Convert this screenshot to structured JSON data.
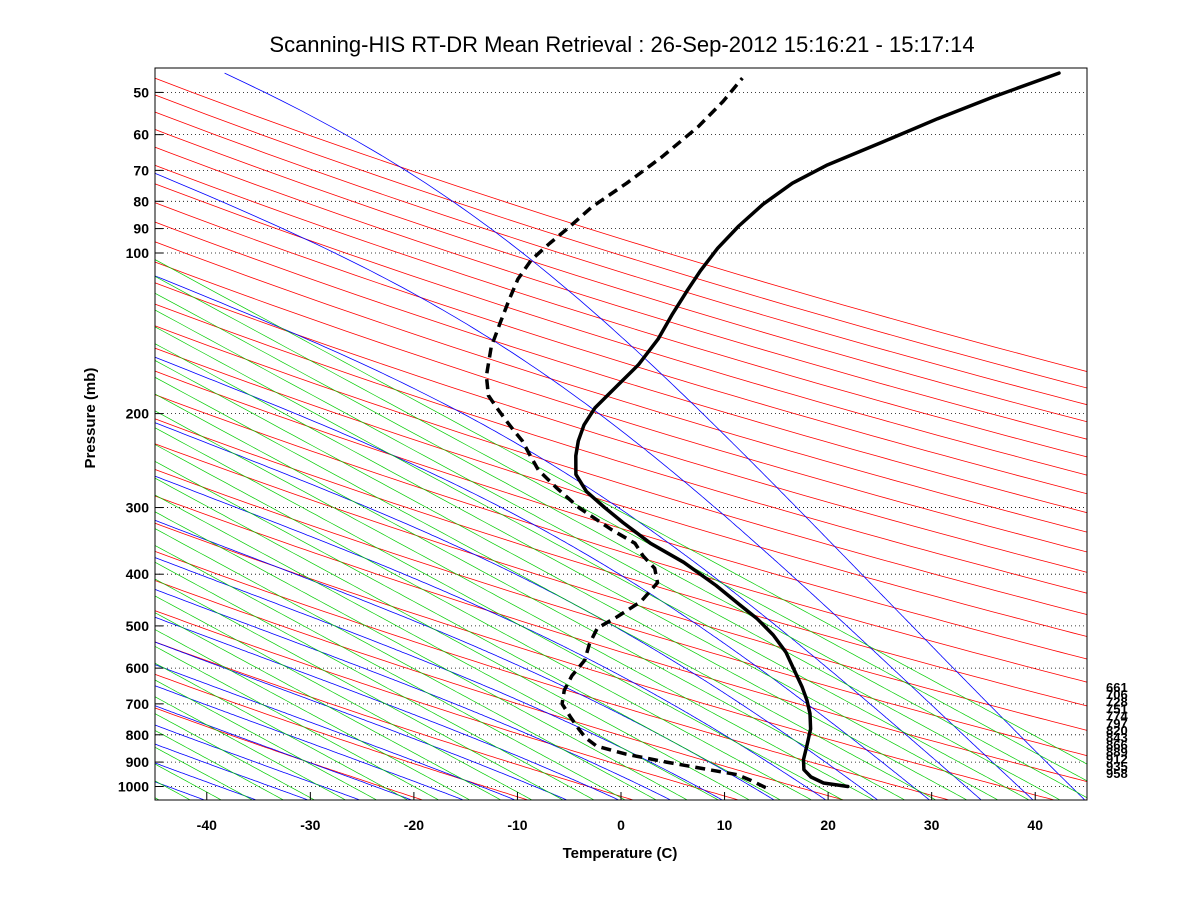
{
  "chart_data": {
    "type": "line",
    "title": "Scanning-HIS RT-DR Mean Retrieval : 26-Sep-2012 15:16:21 - 15:17:14",
    "xlabel": "Temperature (C)",
    "ylabel": "Pressure (mb)",
    "xlim": [
      -45,
      45
    ],
    "ylim": [
      1060,
      45
    ],
    "y_scale": "log",
    "grid": "dotted horizontal at pressure ticks",
    "x_ticks": [
      "-40",
      "-30",
      "-20",
      "-10",
      "0",
      "10",
      "20",
      "30",
      "40"
    ],
    "y_ticks": [
      "50",
      "60",
      "70",
      "80",
      "90",
      "100",
      "200",
      "300",
      "400",
      "500",
      "600",
      "700",
      "800",
      "900",
      "1000"
    ],
    "side_labels": [
      "661",
      "706",
      "728",
      "751",
      "774",
      "797",
      "820",
      "843",
      "866",
      "889",
      "912",
      "935",
      "958"
    ],
    "background_lines": {
      "dry_adiabats_color": "#ff0000",
      "moist_adiabats_color": "#0000ff",
      "mixing_ratio_color": "#00cc00"
    },
    "series": [
      {
        "name": "Temperature",
        "style": "solid",
        "color": "#000000",
        "points": [
          [
            21.9,
            1000
          ],
          [
            19.5,
            985
          ],
          [
            18.2,
            960
          ],
          [
            17.4,
            930
          ],
          [
            17.2,
            890
          ],
          [
            17.3,
            840
          ],
          [
            17.4,
            780
          ],
          [
            17.1,
            730
          ],
          [
            16.6,
            690
          ],
          [
            15.9,
            650
          ],
          [
            15.0,
            610
          ],
          [
            13.8,
            560
          ],
          [
            12.3,
            520
          ],
          [
            10.5,
            485
          ],
          [
            8.5,
            455
          ],
          [
            6.0,
            420
          ],
          [
            2.5,
            380
          ],
          [
            -1.0,
            350
          ],
          [
            -4.0,
            320
          ],
          [
            -6.0,
            300
          ],
          [
            -8.0,
            280
          ],
          [
            -9.3,
            260
          ],
          [
            -9.6,
            240
          ],
          [
            -9.6,
            225
          ],
          [
            -9.3,
            210
          ],
          [
            -8.5,
            195
          ],
          [
            -7.0,
            180
          ],
          [
            -5.0,
            162
          ],
          [
            -3.5,
            145
          ],
          [
            -2.5,
            130
          ],
          [
            -1.5,
            118
          ],
          [
            -0.5,
            108
          ],
          [
            0.8,
            98
          ],
          [
            2.5,
            89
          ],
          [
            4.5,
            81
          ],
          [
            7.0,
            74
          ],
          [
            10.0,
            68.5
          ],
          [
            15.0,
            62
          ],
          [
            20.0,
            56
          ],
          [
            25.0,
            51
          ],
          [
            31.0,
            46
          ]
        ]
      },
      {
        "name": "Dewpoint",
        "style": "dashed",
        "color": "#000000",
        "points": [
          [
            14.0,
            1005
          ],
          [
            12.5,
            975
          ],
          [
            11.0,
            950
          ],
          [
            7.5,
            925
          ],
          [
            4.0,
            900
          ],
          [
            0.0,
            870
          ],
          [
            -3.0,
            840
          ],
          [
            -4.2,
            810
          ],
          [
            -5.0,
            780
          ],
          [
            -6.0,
            740
          ],
          [
            -7.0,
            700
          ],
          [
            -7.0,
            660
          ],
          [
            -6.5,
            620
          ],
          [
            -5.5,
            580
          ],
          [
            -5.3,
            540
          ],
          [
            -4.8,
            505
          ],
          [
            -3.0,
            480
          ],
          [
            -1.0,
            450
          ],
          [
            0.3,
            415
          ],
          [
            -0.2,
            390
          ],
          [
            -1.5,
            370
          ],
          [
            -2.5,
            350
          ],
          [
            -5.0,
            330
          ],
          [
            -8.5,
            300
          ],
          [
            -11.0,
            275
          ],
          [
            -13.0,
            255
          ],
          [
            -14.0,
            240
          ],
          [
            -15.0,
            225
          ],
          [
            -16.0,
            215
          ],
          [
            -17.0,
            205
          ],
          [
            -18.0,
            195
          ],
          [
            -19.0,
            185
          ],
          [
            -19.5,
            170
          ],
          [
            -19.5,
            150
          ],
          [
            -19.0,
            135
          ],
          [
            -18.5,
            122
          ],
          [
            -18.0,
            112
          ],
          [
            -17.0,
            103
          ],
          [
            -15.5,
            96
          ],
          [
            -14.0,
            90
          ],
          [
            -12.0,
            82
          ],
          [
            -9.0,
            74
          ],
          [
            -6.0,
            66
          ],
          [
            -3.0,
            58
          ],
          [
            -1.0,
            52
          ],
          [
            0.5,
            47
          ]
        ]
      }
    ]
  }
}
